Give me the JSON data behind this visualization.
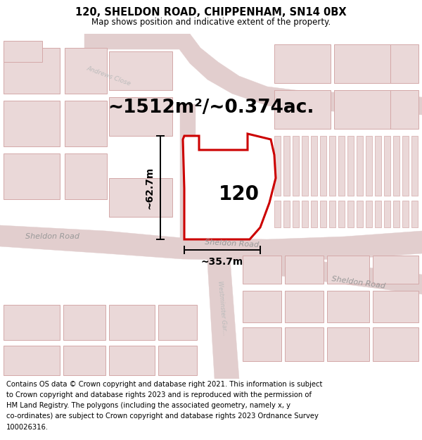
{
  "title_line1": "120, SHELDON ROAD, CHIPPENHAM, SN14 0BX",
  "title_line2": "Map shows position and indicative extent of the property.",
  "area_label": "~1512m²/~0.374ac.",
  "property_label": "120",
  "dim_vertical": "~62.7m",
  "dim_horizontal": "~35.7m",
  "footer_lines": [
    "Contains OS data © Crown copyright and database right 2021. This information is subject",
    "to Crown copyright and database rights 2023 and is reproduced with the permission of",
    "HM Land Registry. The polygons (including the associated geometry, namely x, y",
    "co-ordinates) are subject to Crown copyright and database rights 2023 Ordnance Survey",
    "100026316."
  ],
  "map_bg": "#f7f0f0",
  "road_fill": "#e2cece",
  "building_fill": "#ead8d8",
  "building_edge": "#d4a8a8",
  "property_fill": "#ffffff",
  "property_edge": "#cc0000",
  "road_label_color": "#999999",
  "title_fontsize": 10.5,
  "subtitle_fontsize": 8.5,
  "area_fontsize": 19,
  "label_fontsize": 20,
  "dim_fontsize": 10,
  "road_label_fontsize": 8,
  "footer_fontsize": 7.2
}
